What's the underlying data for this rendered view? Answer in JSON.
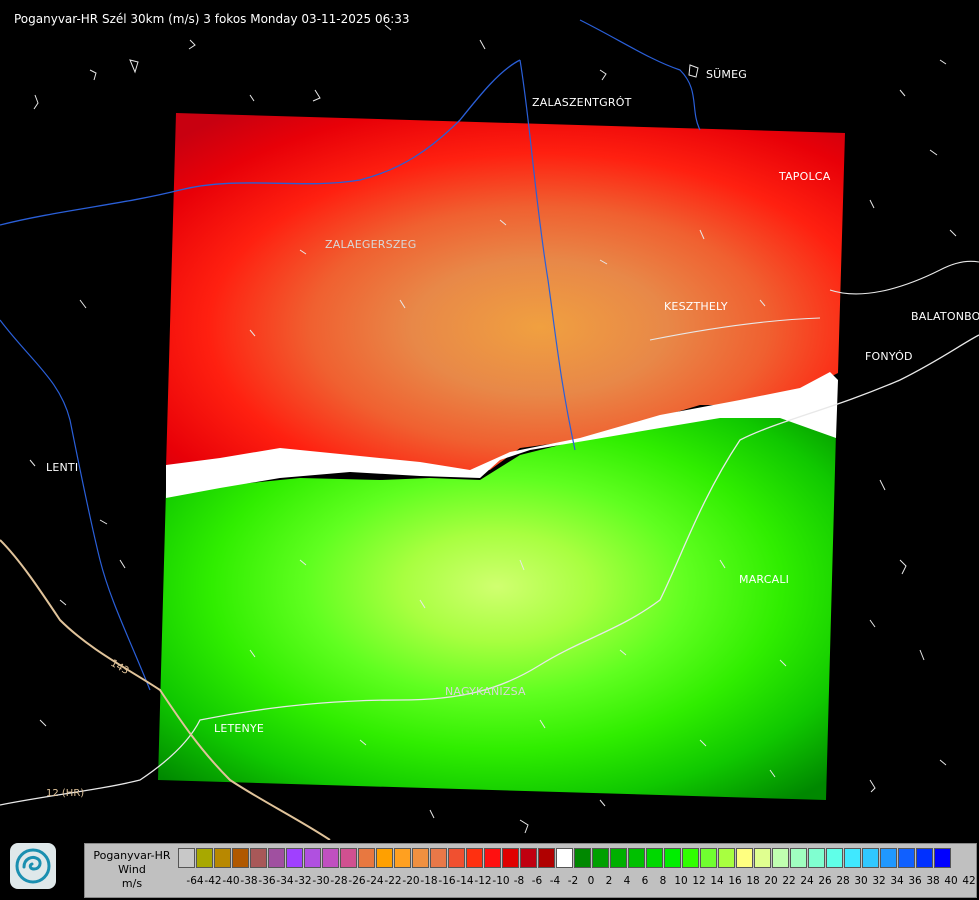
{
  "title": "Poganyvar-HR Szél 30km (m/s) 3 fokos Monday 03-11-2025 06:33",
  "cities": {
    "sumeg": "SÜMEG",
    "zalaszentgrot": "ZALASZENTGRÓT",
    "tapolca": "TAPOLCA",
    "zalaegerszeg": "ZALAEGERSZEG",
    "keszthely": "KESZTHELY",
    "balatonbo": "BALATONBO",
    "fonyod": "FONYÓD",
    "lenti": "LENTI",
    "marcali": "MARCALI",
    "nagykanizsa": "NAGYKANIZSA",
    "letenye": "LETENYE"
  },
  "roads": {
    "r12": "12 (HR)",
    "r143": "143"
  },
  "legend": {
    "line1": "Poganyvar-HR",
    "line2": "Wind",
    "line3": "m/s",
    "colors": [
      "#c8c8c8",
      "#a8a800",
      "#b88800",
      "#b05800",
      "#a85858",
      "#a050a0",
      "#a040ff",
      "#b050e0",
      "#c050c0",
      "#d05090",
      "#e87840",
      "#ffa000",
      "#ffa020",
      "#f09040",
      "#e87848",
      "#f05030",
      "#ff3010",
      "#ff1010",
      "#e00000",
      "#c00010",
      "#b00000",
      "#ffffff",
      "#008800",
      "#00a000",
      "#00b000",
      "#00c000",
      "#00d800",
      "#00ee00",
      "#30ff00",
      "#70ff30",
      "#a8ff40",
      "#ffff80",
      "#e0ff90",
      "#c0ffb0",
      "#a0ffc0",
      "#80ffd0",
      "#60ffe8",
      "#40e8ff",
      "#30c8ff",
      "#2098ff",
      "#1060ff",
      "#0030ff",
      "#0000ff"
    ],
    "ticks": [
      "-64",
      "-42",
      "-40",
      "-38",
      "-36",
      "-34",
      "-32",
      "-30",
      "-28",
      "-26",
      "-24",
      "-22",
      "-20",
      "-18",
      "-16",
      "-14",
      "-12",
      "-10",
      "-8",
      "-6",
      "-4",
      "-2",
      "0",
      "2",
      "4",
      "6",
      "8",
      "10",
      "12",
      "14",
      "16",
      "18",
      "20",
      "22",
      "24",
      "26",
      "28",
      "30",
      "32",
      "34",
      "36",
      "38",
      "40",
      "42"
    ]
  }
}
